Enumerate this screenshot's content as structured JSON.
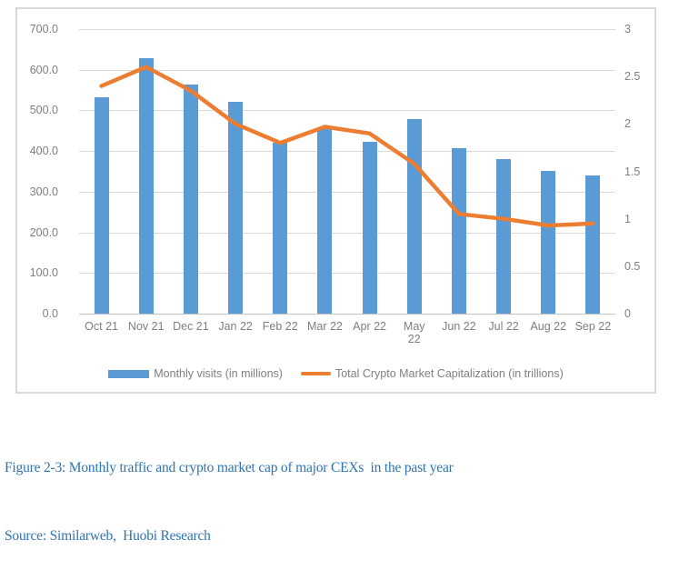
{
  "colors": {
    "bar_blue": "#5b9bd5",
    "line_orange": "#ed7d31",
    "gridline": "#d9d9d9",
    "axis_text": "#7f7f7f",
    "caption_blue": "#2e74b5",
    "frame_border": "#d9d9d9"
  },
  "chart_data": {
    "type": "combo-bar-line",
    "grid": true,
    "legend_position": "bottom",
    "categories": [
      "Oct 21",
      "Nov 21",
      "Dec 21",
      "Jan 22",
      "Feb 22",
      "Mar 22",
      "Apr 22",
      "May 22",
      "Jun 22",
      "Jul 22",
      "Aug 22",
      "Sep 22"
    ],
    "wrap_category": "May 22",
    "series": [
      {
        "name": "Monthly visits (in millions)",
        "type": "bar",
        "axis": "left",
        "color": "#5b9bd5",
        "values": [
          532,
          628,
          563,
          520,
          421,
          455,
          423,
          479,
          406,
          380,
          351,
          340
        ]
      },
      {
        "name": "Total Crypto Market Capitalization (in trillions)",
        "type": "line",
        "axis": "right",
        "color": "#ed7d31",
        "values": [
          2.4,
          2.6,
          2.35,
          2.0,
          1.8,
          1.97,
          1.9,
          1.58,
          1.05,
          1.0,
          0.93,
          0.95
        ]
      }
    ],
    "left_axis": {
      "min": 0,
      "max": 700,
      "step": 100,
      "tick_labels": [
        "700.0",
        "600.0",
        "500.0",
        "400.0",
        "300.0",
        "200.0",
        "100.0",
        "0.0"
      ]
    },
    "right_axis": {
      "min": 0,
      "max": 3,
      "step": 0.5,
      "tick_labels": [
        "3",
        "2.5",
        "2",
        "1.5",
        "1",
        "0.5",
        "0"
      ]
    }
  },
  "caption": {
    "figure_line": "Figure 2-3: Monthly traffic and crypto market cap of major CEXs  in the past year",
    "source_line": "Source: Similarweb,  Huobi Research"
  }
}
